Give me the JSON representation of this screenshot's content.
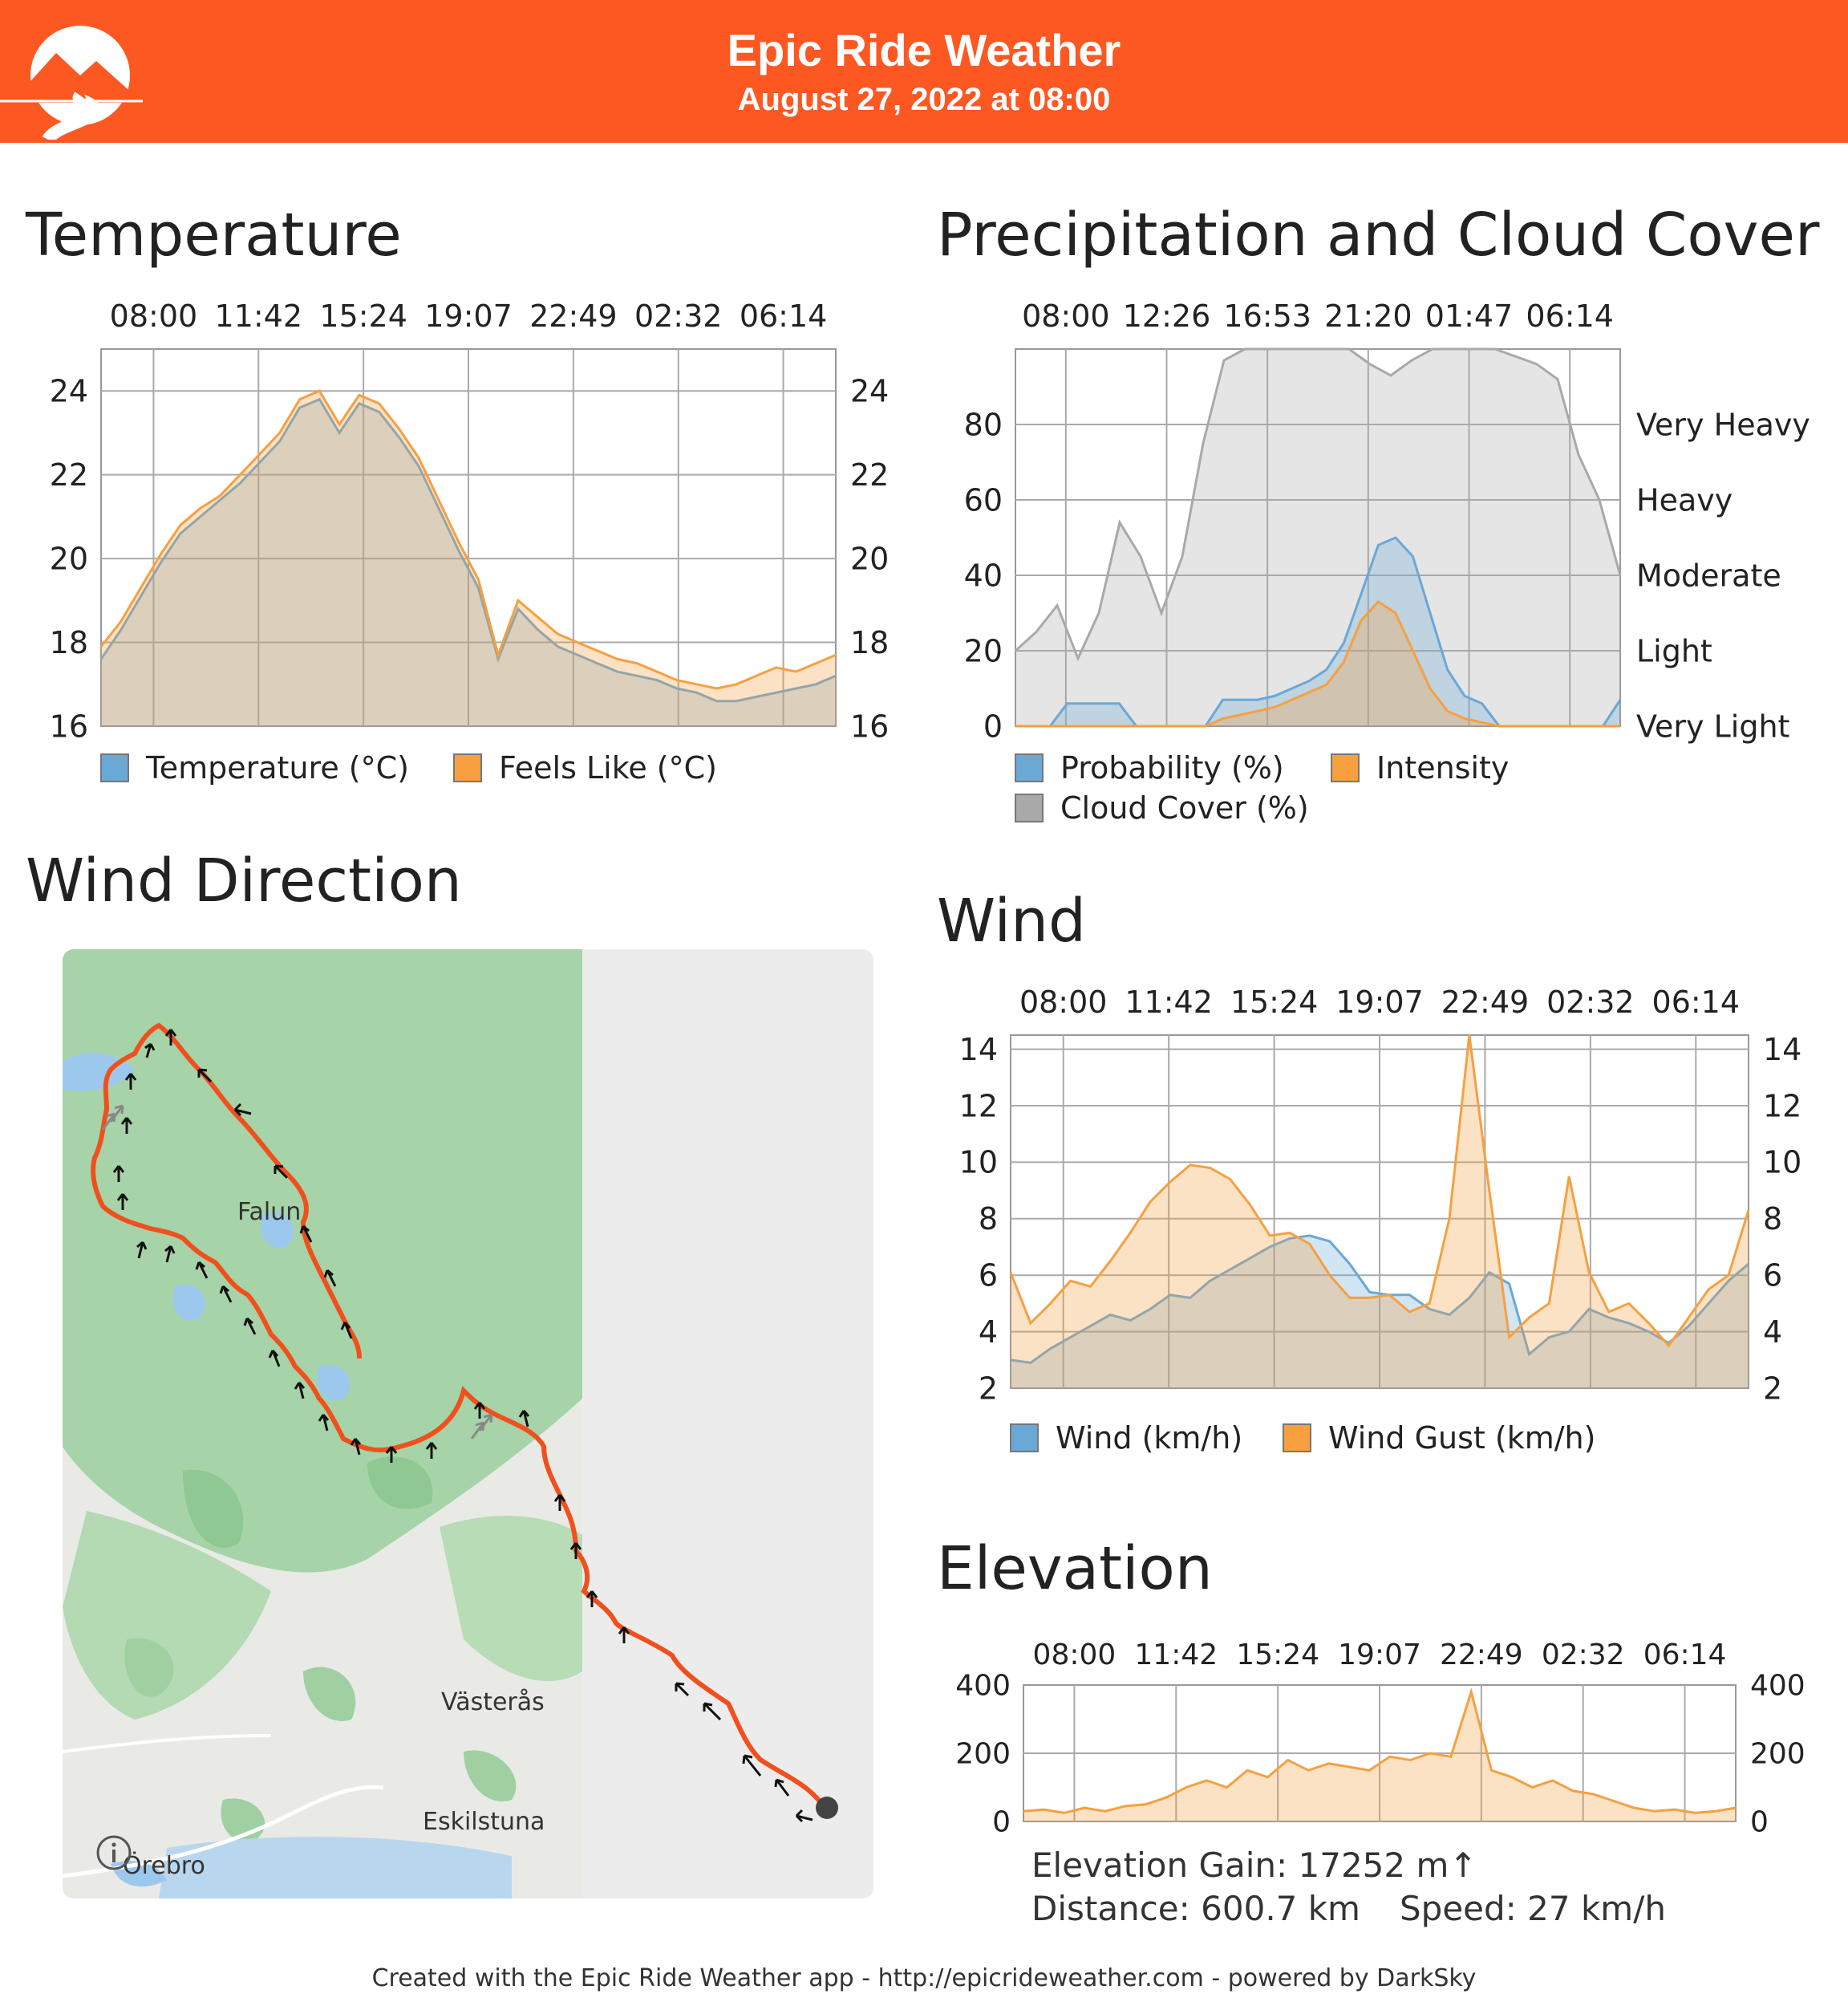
{
  "header": {
    "title": "Epic Ride Weather",
    "subtitle": "August 27, 2022 at 08:00",
    "logo_icon": "mountain-road-logo-icon"
  },
  "colors": {
    "brand": "#fd5722",
    "blue": "#6aa8d6",
    "orange": "#f6a040",
    "gray": "#a9a9a9",
    "route": "#f0501e"
  },
  "temperature": {
    "title": "Temperature",
    "chart_data": {
      "type": "area",
      "x_ticks": [
        "08:00",
        "11:42",
        "15:24",
        "19:07",
        "22:49",
        "02:32",
        "06:14"
      ],
      "y_ticks": [
        "16",
        "18",
        "20",
        "22",
        "24"
      ],
      "ylim": [
        16,
        25
      ],
      "grid": true,
      "legend": "bottom",
      "series": [
        {
          "name": "Temperature (°C)",
          "color": "#6aa8d6",
          "values": [
            17.6,
            18.3,
            19.1,
            19.9,
            20.6,
            21.0,
            21.4,
            21.8,
            22.3,
            22.8,
            23.6,
            23.8,
            23.0,
            23.7,
            23.5,
            22.9,
            22.2,
            21.2,
            20.2,
            19.3,
            17.6,
            18.8,
            18.3,
            17.9,
            17.7,
            17.5,
            17.3,
            17.2,
            17.1,
            16.9,
            16.8,
            16.6,
            16.6,
            16.7,
            16.8,
            16.9,
            17.0,
            17.2
          ]
        },
        {
          "name": "Feels Like (°C)",
          "color": "#f6a040",
          "values": [
            17.9,
            18.5,
            19.3,
            20.1,
            20.8,
            21.2,
            21.5,
            22.0,
            22.5,
            23.0,
            23.8,
            24.0,
            23.2,
            23.9,
            23.7,
            23.1,
            22.4,
            21.4,
            20.4,
            19.5,
            17.7,
            19.0,
            18.6,
            18.2,
            18.0,
            17.8,
            17.6,
            17.5,
            17.3,
            17.1,
            17.0,
            16.9,
            17.0,
            17.2,
            17.4,
            17.3,
            17.5,
            17.7
          ]
        }
      ]
    }
  },
  "precipitation": {
    "title": "Precipitation and Cloud Cover",
    "chart_data": {
      "type": "area",
      "x_ticks": [
        "08:00",
        "12:26",
        "16:53",
        "21:20",
        "01:47",
        "06:14"
      ],
      "y_ticks": [
        "0",
        "20",
        "40",
        "60",
        "80"
      ],
      "y_right_ticks": [
        "Very Light",
        "Light",
        "Moderate",
        "Heavy",
        "Very Heavy"
      ],
      "ylim": [
        0,
        100
      ],
      "grid": true,
      "legend": "bottom",
      "series": [
        {
          "name": "Probability (%)",
          "color": "#6aa8d6",
          "values": [
            0,
            0,
            0,
            6,
            6,
            6,
            6,
            0,
            0,
            0,
            0,
            0,
            7,
            7,
            7,
            8,
            10,
            12,
            15,
            22,
            35,
            48,
            50,
            45,
            30,
            15,
            8,
            6,
            0,
            0,
            0,
            0,
            0,
            0,
            0,
            7
          ]
        },
        {
          "name": "Intensity",
          "color": "#f6a040",
          "values": [
            0,
            0,
            0,
            0,
            0,
            0,
            0,
            0,
            0,
            0,
            0,
            0,
            2,
            3,
            4,
            5,
            7,
            9,
            11,
            17,
            28,
            33,
            30,
            20,
            10,
            4,
            2,
            1,
            0,
            0,
            0,
            0,
            0,
            0,
            0,
            0
          ]
        },
        {
          "name": "Cloud Cover (%)",
          "color": "#a9a9a9",
          "values": [
            20,
            25,
            32,
            18,
            30,
            54,
            45,
            30,
            45,
            75,
            97,
            100,
            100,
            100,
            100,
            100,
            100,
            96,
            93,
            97,
            100,
            100,
            100,
            100,
            98,
            96,
            92,
            72,
            60,
            40
          ]
        }
      ]
    }
  },
  "wind_direction": {
    "title": "Wind Direction",
    "map_labels": {
      "falun": "Falun",
      "vasteras": "Västerås",
      "eskilstuna": "Eskilstuna",
      "orebro": "Örebro"
    },
    "info_icon": "info-icon"
  },
  "wind": {
    "title": "Wind",
    "chart_data": {
      "type": "area",
      "x_ticks": [
        "08:00",
        "11:42",
        "15:24",
        "19:07",
        "22:49",
        "02:32",
        "06:14"
      ],
      "y_ticks": [
        "2",
        "4",
        "6",
        "8",
        "10",
        "12",
        "14"
      ],
      "ylim": [
        2,
        14.5
      ],
      "grid": true,
      "legend": "bottom",
      "series": [
        {
          "name": "Wind (km/h)",
          "color": "#6aa8d6",
          "values": [
            3.0,
            2.9,
            3.4,
            3.8,
            4.2,
            4.6,
            4.4,
            4.8,
            5.3,
            5.2,
            5.8,
            6.2,
            6.6,
            7.0,
            7.3,
            7.4,
            7.2,
            6.4,
            5.4,
            5.3,
            5.3,
            4.8,
            4.6,
            5.2,
            6.1,
            5.7,
            3.2,
            3.8,
            4.0,
            4.8,
            4.5,
            4.3,
            4.0,
            3.6,
            4.2,
            5.0,
            5.8,
            6.4
          ]
        },
        {
          "name": "Wind Gust (km/h)",
          "color": "#f6a040",
          "values": [
            6.1,
            4.3,
            5.0,
            5.8,
            5.6,
            6.5,
            7.5,
            8.6,
            9.3,
            9.9,
            9.8,
            9.4,
            8.5,
            7.4,
            7.5,
            7.1,
            6.0,
            5.2,
            5.2,
            5.3,
            4.7,
            5.0,
            8.0,
            14.6,
            9.0,
            3.8,
            4.5,
            5.0,
            9.5,
            6.1,
            4.7,
            5.0,
            4.3,
            3.5,
            4.5,
            5.5,
            6.0,
            8.3
          ]
        }
      ]
    }
  },
  "elevation": {
    "title": "Elevation",
    "chart_data": {
      "type": "area",
      "x_ticks": [
        "08:00",
        "11:42",
        "15:24",
        "19:07",
        "22:49",
        "02:32",
        "06:14"
      ],
      "y_ticks": [
        "0",
        "200",
        "400"
      ],
      "ylim": [
        0,
        400
      ],
      "grid": true,
      "series": [
        {
          "name": "Elevation",
          "color": "#f6a040",
          "values": [
            30,
            35,
            25,
            40,
            30,
            45,
            50,
            70,
            100,
            120,
            100,
            150,
            130,
            180,
            150,
            170,
            160,
            150,
            190,
            180,
            200,
            190,
            380,
            150,
            130,
            100,
            120,
            90,
            80,
            60,
            40,
            30,
            35,
            25,
            30,
            40
          ]
        }
      ]
    },
    "stats": {
      "gain": "Elevation Gain: 17252 m↑",
      "distance": "Distance: 600.7 km",
      "speed": "Speed: 27 km/h"
    }
  },
  "footer": "Created with the Epic Ride Weather app - http://epicrideweather.com - powered by DarkSky"
}
